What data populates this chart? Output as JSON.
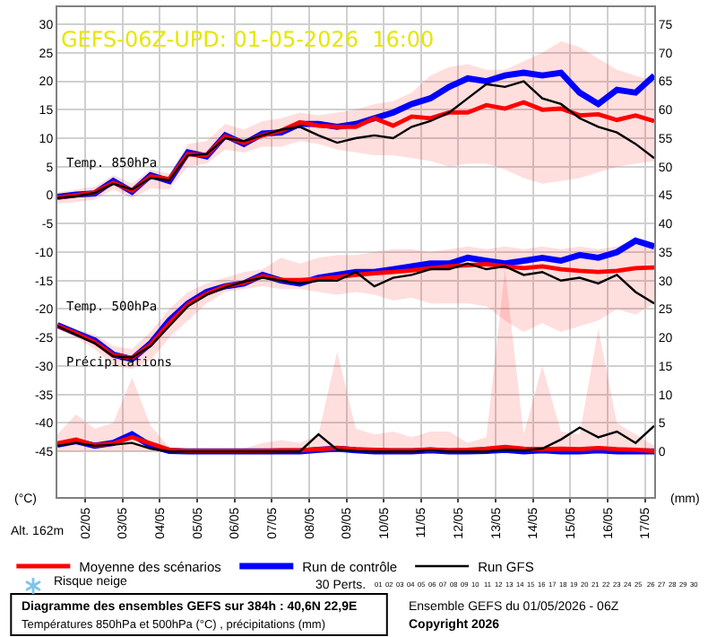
{
  "chart_data": {
    "type": "line",
    "title": "GEFS-06Z-UPD: 01-05-2026  16:00",
    "ylabel": "(°C)",
    "y2label": "(mm)",
    "annotations": [
      "Temp. 850hPa",
      "Temp. 500hPa",
      "Précipitations",
      "Alt. 162m",
      "Risque neige",
      "30 Perts.",
      "01 02 03 04 05 06 07 08 09 10 11 12 13 14 15 16 17 18 19 20 21 22 23 24 25 26 27 28 29 30",
      "Diagramme des ensembles GEFS sur 384h : 40,6N 22,9E",
      "Températures 850hPa et 500hPa (°C) , précipitations (mm)",
      "Ensemble GEFS du 01/05/2026 - 06Z",
      "Copyright 2026"
    ],
    "x": [
      "2026-05-01T06:00",
      "2026-05-01T18:00",
      "2026-05-02T06:00",
      "2026-05-02T18:00",
      "2026-05-03T06:00",
      "2026-05-03T18:00",
      "2026-05-04T06:00",
      "2026-05-04T18:00",
      "2026-05-05T06:00",
      "2026-05-05T18:00",
      "2026-05-06T06:00",
      "2026-05-06T18:00",
      "2026-05-07T06:00",
      "2026-05-07T18:00",
      "2026-05-08T06:00",
      "2026-05-08T18:00",
      "2026-05-09T06:00",
      "2026-05-09T18:00",
      "2026-05-10T06:00",
      "2026-05-10T18:00",
      "2026-05-11T06:00",
      "2026-05-11T18:00",
      "2026-05-12T06:00",
      "2026-05-12T18:00",
      "2026-05-13T06:00",
      "2026-05-13T18:00",
      "2026-05-14T06:00",
      "2026-05-14T18:00",
      "2026-05-15T06:00",
      "2026-05-15T18:00",
      "2026-05-16T06:00",
      "2026-05-16T18:00",
      "2026-05-17T06:00"
    ],
    "series": [
      {
        "name": "Moyenne des scénarios",
        "color": "#ff0000",
        "values": [
          -0.4,
          0.0,
          0.5,
          2.2,
          0.8,
          3.3,
          2.8,
          7.2,
          7.0,
          10.3,
          9.2,
          10.5,
          11.3,
          12.8,
          12.2,
          12.0,
          12.0,
          13.5,
          12.2,
          13.8,
          13.5,
          14.5,
          14.5,
          15.8,
          15.2,
          16.3,
          15.0,
          15.2,
          14.0,
          14.2,
          13.2,
          14.0,
          13.0
        ],
        "lower": [
          -1.5,
          -1.2,
          -0.8,
          1.0,
          -0.5,
          1.2,
          1.0,
          5.0,
          5.5,
          8.0,
          7.5,
          8.5,
          8.5,
          9.5,
          9.0,
          8.0,
          7.5,
          7.0,
          7.0,
          6.5,
          6.0,
          5.0,
          5.5,
          5.5,
          4.5,
          3.0,
          2.0,
          2.5,
          3.0,
          4.0,
          5.0,
          5.5,
          6.0
        ],
        "upper": [
          0.5,
          1.0,
          1.5,
          3.5,
          2.0,
          4.5,
          3.8,
          9.0,
          9.5,
          12.5,
          11.5,
          13.0,
          13.5,
          14.5,
          14.0,
          14.5,
          15.0,
          16.0,
          16.5,
          18.0,
          21.0,
          22.5,
          23.0,
          22.0,
          22.0,
          23.5,
          25.0,
          27.0,
          26.0,
          24.0,
          22.0,
          21.0,
          20.0
        ]
      },
      {
        "name": "Run de contrôle",
        "color": "#0000ff",
        "values": [
          -0.3,
          0.1,
          0.3,
          2.5,
          0.6,
          3.5,
          2.5,
          7.5,
          6.8,
          10.5,
          9.0,
          10.8,
          11.0,
          12.5,
          12.5,
          12.0,
          12.5,
          13.5,
          14.5,
          16.0,
          17.0,
          19.0,
          20.5,
          20.0,
          21.0,
          21.5,
          21.0,
          21.5,
          18.0,
          16.0,
          18.5,
          18.0,
          21.0
        ]
      },
      {
        "name": "Run GFS",
        "color": "#000000",
        "values": [
          -0.5,
          -0.2,
          0.4,
          2.0,
          1.0,
          3.0,
          2.6,
          7.0,
          7.2,
          10.0,
          9.5,
          10.5,
          11.5,
          12.0,
          10.5,
          9.2,
          10.0,
          10.5,
          10.0,
          12.0,
          13.0,
          14.5,
          17.0,
          19.5,
          19.0,
          20.0,
          17.0,
          16.0,
          13.5,
          12.0,
          11.0,
          9.0,
          6.5
        ]
      },
      {
        "color": "#ff0000",
        "values": [
          -22.9,
          -24.3,
          -25.8,
          -28.1,
          -28.6,
          -26.2,
          -22.5,
          -19.2,
          -17.3,
          -16.0,
          -15.4,
          -14.2,
          -14.9,
          -14.9,
          -14.7,
          -14.4,
          -14.0,
          -13.7,
          -13.5,
          -13.2,
          -12.8,
          -12.5,
          -12.3,
          -12.1,
          -12.5,
          -12.8,
          -12.5,
          -13.0,
          -13.3,
          -13.5,
          -13.3,
          -12.8,
          -12.7
        ],
        "lower": [
          -23.5,
          -25.0,
          -27.0,
          -30.0,
          -30.5,
          -29.0,
          -25.0,
          -22.0,
          -19.0,
          -17.0,
          -16.5,
          -16.0,
          -16.5,
          -16.5,
          -17.0,
          -17.5,
          -17.0,
          -17.5,
          -18.5,
          -18.0,
          -19.0,
          -19.0,
          -19.0,
          -19.5,
          -22.0,
          -24.0,
          -22.5,
          -24.0,
          -23.0,
          -22.0,
          -20.0,
          -21.0,
          -19.0
        ],
        "upper": [
          -22.5,
          -23.5,
          -24.5,
          -26.5,
          -27.0,
          -24.0,
          -20.0,
          -17.0,
          -15.5,
          -14.5,
          -13.5,
          -13.0,
          -11.0,
          -12.0,
          -11.0,
          -10.5,
          -10.5,
          -10.0,
          -9.5,
          -9.5,
          -10.0,
          -9.5,
          -9.0,
          -9.5,
          -9.0,
          -9.5,
          -9.0,
          -9.5,
          -9.0,
          -9.5,
          -9.0,
          -8.0,
          -9.0
        ]
      },
      {
        "color": "#0000ff",
        "values": [
          -22.8,
          -24.2,
          -25.5,
          -28.0,
          -28.8,
          -26.0,
          -22.0,
          -19.0,
          -17.0,
          -16.0,
          -15.5,
          -14.0,
          -15.0,
          -15.5,
          -14.5,
          -14.0,
          -13.5,
          -13.5,
          -13.0,
          -12.5,
          -12.0,
          -12.0,
          -11.0,
          -11.5,
          -12.0,
          -11.5,
          -11.0,
          -11.5,
          -10.5,
          -11.0,
          -10.0,
          -8.0,
          -9.0
        ]
      },
      {
        "color": "#000000",
        "values": [
          -23.0,
          -24.5,
          -26.0,
          -28.3,
          -28.5,
          -26.5,
          -23.0,
          -19.5,
          -17.5,
          -16.2,
          -15.2,
          -14.5,
          -15.0,
          -15.5,
          -15.0,
          -15.0,
          -13.5,
          -16.0,
          -14.5,
          -14.0,
          -13.0,
          -13.0,
          -12.0,
          -13.0,
          -12.5,
          -14.0,
          -13.5,
          -15.0,
          -14.5,
          -15.5,
          -14.0,
          -17.0,
          -19.0
        ]
      },
      {
        "color": "#ff0000",
        "axis": "y2",
        "values": [
          1.4,
          2.1,
          1.1,
          1.4,
          2.5,
          1.4,
          0.3,
          0.1,
          0.1,
          0.1,
          0.1,
          0.1,
          0.2,
          0.2,
          0.4,
          0.6,
          0.4,
          0.3,
          0.2,
          0.2,
          0.3,
          0.2,
          0.3,
          0.5,
          0.8,
          0.5,
          0.4,
          0.5,
          0.4,
          0.6,
          0.4,
          0.3,
          0.1
        ],
        "lower": [
          0,
          0,
          0,
          0,
          0,
          0,
          0,
          0,
          0,
          0,
          0,
          0,
          0,
          0,
          0,
          0,
          0,
          0,
          0,
          0,
          0,
          0,
          0,
          0,
          0,
          0,
          0,
          0,
          0,
          0,
          0,
          0,
          0
        ],
        "upper": [
          3.0,
          6.5,
          4.0,
          5.0,
          13.0,
          4.5,
          0.8,
          0.3,
          0.3,
          0.5,
          0.5,
          1.5,
          2.0,
          1.5,
          3.0,
          17.5,
          4.0,
          3.0,
          3.5,
          2.5,
          3.5,
          3.5,
          1.5,
          2.5,
          32.0,
          3.0,
          15.0,
          3.5,
          3.0,
          21.5,
          5.0,
          3.0,
          1.0
        ]
      },
      {
        "color": "#0000ff",
        "axis": "y2",
        "values": [
          1.2,
          1.8,
          1.0,
          1.5,
          3.0,
          1.0,
          0.1,
          0,
          0,
          0,
          0,
          0,
          0,
          0,
          0.3,
          0.5,
          0.2,
          0,
          0,
          0,
          0.2,
          0,
          0,
          0.1,
          0.3,
          0,
          0.2,
          0,
          0,
          0.2,
          0,
          0,
          0
        ]
      },
      {
        "color": "#000000",
        "axis": "y2",
        "values": [
          1.0,
          1.5,
          1.0,
          1.2,
          1.5,
          0.5,
          0,
          0,
          0,
          0,
          0,
          0,
          0,
          0,
          3.0,
          0.3,
          0.1,
          0,
          0,
          0,
          0.2,
          0,
          0,
          0,
          0.3,
          0.2,
          0.5,
          2.1,
          4.2,
          2.5,
          3.5,
          1.5,
          4.5
        ]
      }
    ],
    "xlim": [
      "2026-05-01T06:00",
      "2026-05-17T06:00"
    ],
    "xticks": [
      {
        "value": "2026-05-02",
        "label": "02/05"
      },
      {
        "value": "2026-05-03",
        "label": "03/05"
      },
      {
        "value": "2026-05-04",
        "label": "04/05"
      },
      {
        "value": "2026-05-05",
        "label": "05/05"
      },
      {
        "value": "2026-05-06",
        "label": "06/05"
      },
      {
        "value": "2026-05-07",
        "label": "07/05"
      },
      {
        "value": "2026-05-08",
        "label": "08/05"
      },
      {
        "value": "2026-05-09",
        "label": "09/05"
      },
      {
        "value": "2026-05-10",
        "label": "10/05"
      },
      {
        "value": "2026-05-11",
        "label": "11/05"
      },
      {
        "value": "2026-05-12",
        "label": "12/05"
      },
      {
        "value": "2026-05-13",
        "label": "13/05"
      },
      {
        "value": "2026-05-14",
        "label": "14/05"
      },
      {
        "value": "2026-05-15",
        "label": "15/05"
      },
      {
        "value": "2026-05-16",
        "label": "16/05"
      },
      {
        "value": "2026-05-17",
        "label": "17/05"
      }
    ],
    "ylim": [
      -53,
      33
    ],
    "yticks": [
      -45,
      -40,
      -35,
      -30,
      -25,
      -20,
      -15,
      -10,
      -5,
      0,
      5,
      10,
      15,
      20,
      25,
      30
    ],
    "y2lim": [
      -8,
      78
    ],
    "y2ticks": [
      0,
      5,
      10,
      15,
      20,
      25,
      30,
      35,
      40,
      45,
      50,
      55,
      60,
      65,
      70,
      75
    ],
    "grid": true,
    "legend": "bottom"
  }
}
